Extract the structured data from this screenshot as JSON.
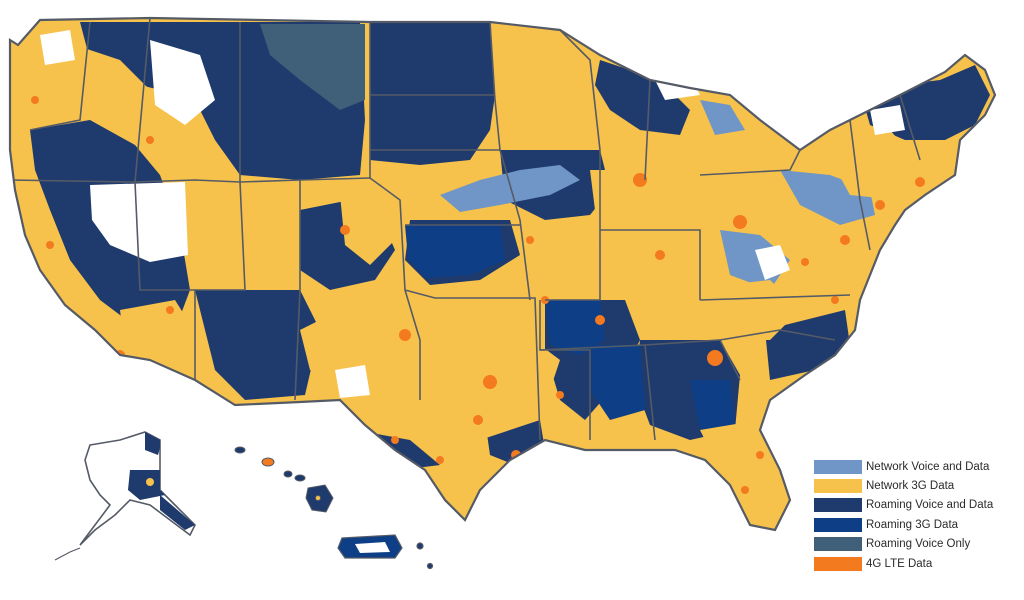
{
  "legend": {
    "items": [
      {
        "label": "Network Voice and Data",
        "color": "#6f96c6"
      },
      {
        "label": "Network 3G Data",
        "color": "#f7c24b"
      },
      {
        "label": "Roaming Voice and Data",
        "color": "#1f3a6c"
      },
      {
        "label": "Roaming 3G Data",
        "color": "#0e3f86"
      },
      {
        "label": "Roaming Voice Only",
        "color": "#3f6078"
      },
      {
        "label": "4G LTE Data",
        "color": "#f47a1f"
      }
    ]
  },
  "map": {
    "regions": [
      "Contiguous United States",
      "Alaska",
      "Hawaii",
      "Puerto Rico"
    ],
    "colors": {
      "background": "#ffffff",
      "border": "#555b66",
      "network_voice_data": "#6f96c6",
      "network_3g": "#f7c24b",
      "roaming_voice_data": "#1f3a6c",
      "roaming_3g": "#0e3f86",
      "roaming_voice_only": "#3f6078",
      "lte": "#f47a1f"
    }
  }
}
